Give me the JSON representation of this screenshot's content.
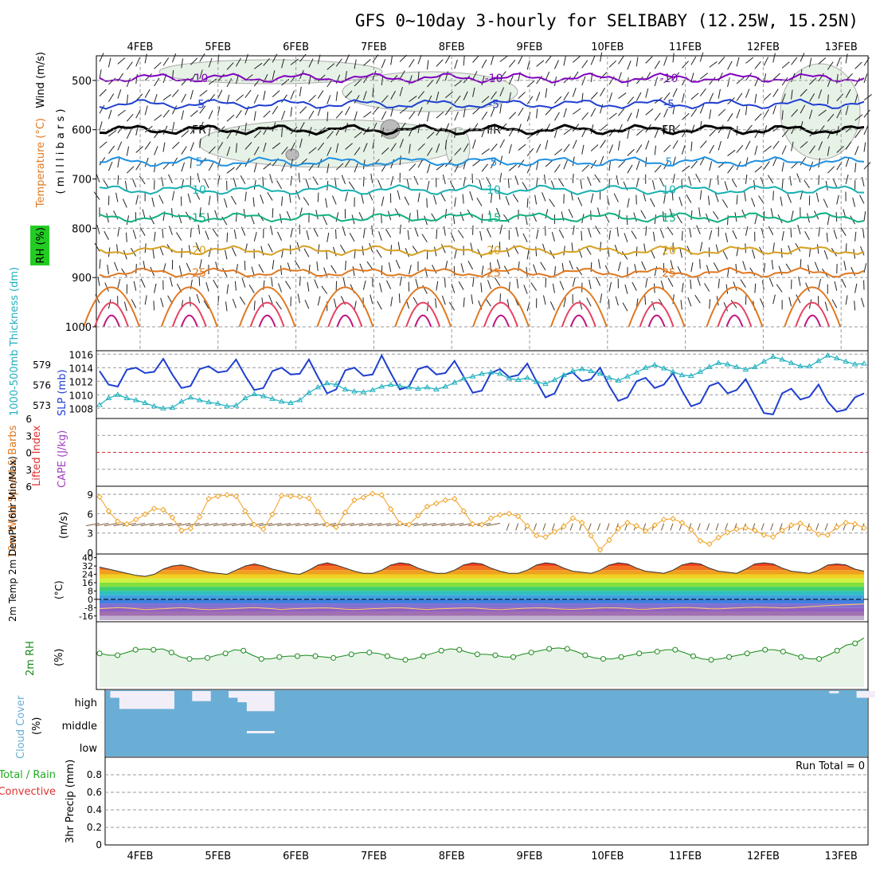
{
  "title": "GFS 0~10day 3-hourly for SELIBABY (12.25W, 15.25N)",
  "dates": [
    "4FEB",
    "5FEB",
    "6FEB",
    "7FEB",
    "8FEB",
    "9FEB",
    "10FEB",
    "11FEB",
    "12FEB",
    "13FEB"
  ],
  "panels": {
    "upper": {
      "labels": {
        "wind": "Wind (m/s)",
        "temperature": "Temperature (°C)",
        "rh": "RH (%)",
        "pressure": "( m i l l i b a r s )"
      },
      "pressure_ticks": [
        "500",
        "600",
        "700",
        "800",
        "900",
        "1000"
      ],
      "pressure_range": [
        450,
        1000
      ],
      "isotherms": [
        {
          "value": -10,
          "label": "-10",
          "color": "#8000c0",
          "p": 495
        },
        {
          "value": -5,
          "label": "-5",
          "color": "#1f3fd0",
          "p": 548
        },
        {
          "value": 0,
          "label": "FR",
          "color": "#000000",
          "p": 600
        },
        {
          "value": 5,
          "label": "5",
          "color": "#1e90e0",
          "p": 665
        },
        {
          "value": 10,
          "label": "10",
          "color": "#18b0b0",
          "p": 722
        },
        {
          "value": 15,
          "label": "15",
          "color": "#10b080",
          "p": 778
        },
        {
          "value": 20,
          "label": "20",
          "color": "#d7a020",
          "p": 845
        },
        {
          "value": 25,
          "label": "25",
          "color": "#e07820",
          "p": 890
        }
      ],
      "rh_contours": [
        "10",
        "30",
        "10",
        "10"
      ]
    },
    "slp": {
      "labels": {
        "thickness": "1000-500mb Thickness (dm)",
        "slp": "SLP (mb)"
      },
      "left_ticks": [
        "573",
        "576",
        "579"
      ],
      "right_ticks": [
        "1008",
        "1010",
        "1012",
        "1014",
        "1016"
      ],
      "thickness_range": [
        571,
        581
      ],
      "slp_range": [
        1006.5,
        1016.5
      ]
    },
    "cape": {
      "labels": {
        "li": "Lifted Index",
        "cape": "CAPE (J/kg)"
      },
      "ticks": [
        "6",
        "3",
        "0",
        "3",
        "6"
      ]
    },
    "wind10": {
      "labels": {
        "title": "10m Wind Speed & Barbs",
        "units": "(m/s)"
      },
      "ticks": [
        "0",
        "3",
        "6",
        "9"
      ],
      "range": [
        0,
        10
      ]
    },
    "temp2m": {
      "labels": {
        "title": "2m Temp 2m DewPt (6hr Min/Max)",
        "units": "(°C)"
      },
      "ticks": [
        "40",
        "32",
        "24",
        "16",
        "8",
        "0",
        "-8",
        "-16"
      ],
      "range": [
        -20,
        42
      ]
    },
    "rh2m": {
      "labels": {
        "title": "2m RH",
        "units": "(%)"
      }
    },
    "cloud": {
      "labels": {
        "title": "Cloud Cover",
        "units": "(%)",
        "high": "high",
        "middle": "middle",
        "low": "low"
      }
    },
    "precip": {
      "labels": {
        "title1": "Total / Rain",
        "title2": "Convective",
        "units": "3hr Precip (mm)",
        "run_total": "Run Total = 0"
      },
      "ticks": [
        "0",
        "0.2",
        "0.4",
        "0.6",
        "0.8"
      ],
      "range": [
        0,
        1
      ]
    }
  },
  "chart_data": [
    {
      "type": "line",
      "name": "slp",
      "title": "SLP (mb)",
      "x_unit": "3-hourly steps from 3FEB 15UTC",
      "values": [
        1013.5,
        1011.5,
        1011.2,
        1013.7,
        1014.0,
        1013.2,
        1013.4,
        1015.3,
        1013.0,
        1011.0,
        1011.3,
        1013.8,
        1014.2,
        1013.3,
        1013.5,
        1015.2,
        1012.8,
        1010.7,
        1011.0,
        1013.5,
        1014.0,
        1013.0,
        1013.1,
        1015.2,
        1012.6,
        1010.2,
        1010.8,
        1013.6,
        1014.0,
        1012.8,
        1013.0,
        1015.8,
        1013.2,
        1010.8,
        1011.2,
        1013.8,
        1014.2,
        1013.0,
        1013.2,
        1015.0,
        1012.7,
        1010.3,
        1010.6,
        1013.2,
        1013.8,
        1012.6,
        1012.9,
        1014.6,
        1012.0,
        1009.6,
        1010.2,
        1012.9,
        1013.3,
        1012.0,
        1012.3,
        1014.0,
        1011.3,
        1009.1,
        1009.6,
        1012.0,
        1012.5,
        1011.0,
        1011.5,
        1013.2,
        1010.6,
        1008.3,
        1008.8,
        1011.3,
        1011.8,
        1010.2,
        1010.7,
        1012.3,
        1009.8,
        1007.3,
        1007.1,
        1010.2,
        1010.9,
        1009.3,
        1009.7,
        1011.5,
        1009.0,
        1007.5,
        1007.8,
        1009.6,
        1010.2
      ],
      "ylim": [
        1006.5,
        1016.5
      ]
    },
    {
      "type": "line",
      "name": "thickness",
      "title": "1000-500mb Thickness (dm)",
      "values": [
        573.0,
        574.0,
        574.5,
        574.0,
        573.7,
        573.3,
        572.8,
        572.5,
        572.6,
        573.5,
        574.1,
        573.7,
        573.4,
        573.2,
        572.8,
        572.9,
        574.0,
        574.6,
        574.3,
        573.9,
        573.5,
        573.3,
        573.7,
        574.8,
        575.6,
        576.2,
        576.0,
        575.3,
        575.0,
        574.9,
        575.2,
        575.7,
        576.0,
        575.8,
        575.6,
        575.4,
        575.6,
        575.3,
        575.7,
        576.3,
        576.9,
        577.2,
        577.6,
        577.8,
        577.6,
        576.9,
        576.7,
        577.0,
        576.4,
        576.1,
        576.7,
        577.4,
        578.0,
        578.3,
        578.0,
        577.6,
        577.0,
        576.6,
        577.2,
        577.8,
        578.5,
        578.9,
        578.4,
        577.9,
        577.4,
        577.3,
        577.9,
        578.6,
        579.2,
        579.0,
        578.6,
        578.2,
        578.6,
        579.4,
        580.1,
        579.7,
        579.2,
        578.7,
        578.7,
        579.5,
        580.3,
        579.9,
        579.4,
        579.0,
        579.1
      ],
      "ylim": [
        571,
        581
      ]
    },
    {
      "type": "line",
      "name": "wind10_speed",
      "title": "10m Wind Speed",
      "values": [
        8.6,
        6.4,
        4.8,
        4.4,
        5.1,
        5.9,
        6.8,
        6.6,
        5.4,
        3.4,
        3.7,
        5.5,
        8.3,
        8.7,
        8.9,
        8.7,
        6.4,
        4.3,
        3.6,
        5.9,
        8.8,
        8.7,
        8.6,
        8.4,
        6.3,
        4.3,
        3.9,
        6.2,
        8.1,
        8.5,
        9.1,
        8.9,
        6.7,
        4.5,
        4.3,
        5.7,
        7.1,
        7.6,
        8.1,
        8.3,
        6.4,
        4.4,
        4.3,
        5.3,
        5.8,
        6.0,
        5.6,
        4.1,
        2.6,
        2.4,
        3.2,
        4.0,
        5.3,
        4.6,
        2.6,
        0.4,
        1.9,
        3.7,
        4.6,
        4.1,
        3.3,
        4.2,
        5.1,
        5.2,
        4.6,
        3.5,
        1.8,
        1.3,
        2.3,
        3.1,
        3.6,
        3.8,
        3.4,
        2.7,
        2.4,
        3.4,
        4.2,
        4.5,
        3.7,
        2.8,
        2.7,
        3.9,
        4.6,
        4.4,
        3.8
      ],
      "ylim": [
        0,
        10
      ]
    },
    {
      "type": "line",
      "name": "temp2m",
      "title": "2m Temp",
      "values": [
        31,
        29,
        27,
        25,
        23,
        22,
        24,
        29,
        32,
        33,
        31,
        28,
        26,
        25,
        24,
        28,
        32,
        34,
        32,
        29,
        27,
        25,
        24,
        28,
        33,
        35,
        33,
        30,
        27,
        25,
        25,
        28,
        33,
        35,
        34,
        30,
        27,
        25,
        25,
        28,
        33,
        35,
        34,
        30,
        27,
        25,
        25,
        28,
        33,
        35,
        34,
        30,
        27,
        26,
        25,
        28,
        33,
        35,
        34,
        30,
        27,
        26,
        25,
        28,
        33,
        35,
        34,
        30,
        27,
        26,
        25,
        29,
        34,
        35,
        34,
        30,
        27,
        26,
        25,
        28,
        33,
        34,
        33,
        29,
        27
      ],
      "ylim": [
        -20,
        42
      ]
    },
    {
      "type": "line",
      "name": "dewpt2m",
      "title": "2m DewPt",
      "values": [
        -9,
        -8.5,
        -8,
        -8.3,
        -9,
        -10,
        -9.5,
        -9,
        -8.5,
        -8,
        -8.6,
        -9.4,
        -10,
        -9.6,
        -9.2,
        -8.8,
        -8.3,
        -8,
        -8.5,
        -9,
        -9.8,
        -9.2,
        -8.8,
        -8.6,
        -8.4,
        -8.2,
        -8.8,
        -9.5,
        -9.9,
        -9.4,
        -9,
        -8.7,
        -8.4,
        -8.1,
        -8.6,
        -9.3,
        -9.8,
        -9.2,
        -8.9,
        -8.6,
        -8.3,
        -8.4,
        -8.9,
        -9.6,
        -10,
        -9.4,
        -8.9,
        -8.5,
        -8.2,
        -8.4,
        -8.9,
        -9.4,
        -9.7,
        -9.3,
        -8.8,
        -8.4,
        -8.1,
        -8.3,
        -8.8,
        -9.4,
        -9.6,
        -9,
        -8.5,
        -8.1,
        -7.8,
        -8,
        -8.5,
        -9,
        -9.2,
        -8.7,
        -8.2,
        -7.8,
        -7.5,
        -7.7,
        -8,
        -8.3,
        -8.1,
        -7.6,
        -7,
        -6.5,
        -6,
        -5.6,
        -5.2,
        -4.8,
        -4.5
      ],
      "ylim": [
        -20,
        42
      ]
    },
    {
      "type": "line",
      "name": "rh2m",
      "title": "2m RH",
      "values": [
        37,
        35,
        35,
        38,
        41,
        42,
        41,
        42,
        38,
        33,
        31,
        31,
        32,
        35,
        37,
        41,
        40,
        35,
        31,
        31,
        33,
        34,
        34,
        35,
        34,
        33,
        32,
        34,
        36,
        38,
        38,
        37,
        34,
        31,
        30,
        31,
        34,
        37,
        40,
        42,
        41,
        38,
        36,
        36,
        35,
        33,
        33,
        36,
        38,
        40,
        42,
        43,
        42,
        39,
        35,
        32,
        31,
        31,
        33,
        35,
        37,
        38,
        39,
        41,
        41,
        38,
        34,
        31,
        30,
        31,
        33,
        35,
        37,
        39,
        41,
        41,
        39,
        36,
        33,
        31,
        31,
        35,
        40,
        46,
        48,
        54
      ],
      "ylim": [
        0,
        70
      ]
    },
    {
      "type": "heatmap",
      "name": "cloud_cover",
      "title": "Cloud Cover",
      "levels": [
        "high",
        "middle",
        "low"
      ],
      "high_fraction": [
        0,
        0.3,
        0.8,
        0.8,
        0.8,
        0.8,
        0.8,
        0.8,
        0,
        0,
        0.45,
        0.45,
        0,
        0,
        0.3,
        0.5,
        0.9,
        0.9,
        0.9,
        0,
        0,
        0,
        0,
        0,
        0,
        0,
        0,
        0,
        0,
        0,
        0,
        0,
        0,
        0,
        0,
        0,
        0,
        0,
        0,
        0,
        0,
        0,
        0,
        0,
        0,
        0,
        0,
        0,
        0,
        0,
        0,
        0,
        0,
        0,
        0,
        0,
        0,
        0,
        0,
        0,
        0,
        0,
        0,
        0,
        0,
        0,
        0,
        0,
        0,
        0,
        0,
        0,
        0,
        0,
        0,
        0,
        0,
        0,
        0,
        0,
        0.1,
        0,
        0,
        0.3,
        0.3
      ],
      "middle_fraction": [
        0,
        0,
        0,
        0,
        0,
        0,
        0,
        0,
        0,
        0,
        0,
        0,
        0,
        0,
        0,
        0,
        0.08,
        0.08,
        0.08,
        0,
        0,
        0,
        0,
        0,
        0,
        0,
        0,
        0,
        0,
        0,
        0,
        0,
        0,
        0,
        0,
        0,
        0,
        0,
        0,
        0,
        0,
        0,
        0,
        0,
        0,
        0,
        0,
        0,
        0,
        0,
        0,
        0,
        0,
        0,
        0,
        0,
        0,
        0,
        0,
        0,
        0,
        0,
        0,
        0,
        0,
        0,
        0,
        0,
        0,
        0,
        0,
        0,
        0,
        0,
        0,
        0,
        0,
        0,
        0,
        0,
        0,
        0,
        0,
        0,
        0
      ]
    },
    {
      "type": "bar",
      "name": "precip",
      "title": "3hr Precip (mm)",
      "values": [],
      "ylim": [
        0,
        1
      ]
    }
  ],
  "colors": {
    "slp": "#1f3fd0",
    "thickness": "#20b0c0",
    "wind10": "#f0a020",
    "barb": "#7a5a3a",
    "rh2m": "#1a8a1a",
    "cloud": "#6aaed6",
    "cloud_gap": "#f2eef8",
    "cape": "#cc3333",
    "temp_label": "#e07820",
    "rh_box": "#22cc22",
    "li": "#e03030",
    "cape_label": "#a040c0"
  }
}
